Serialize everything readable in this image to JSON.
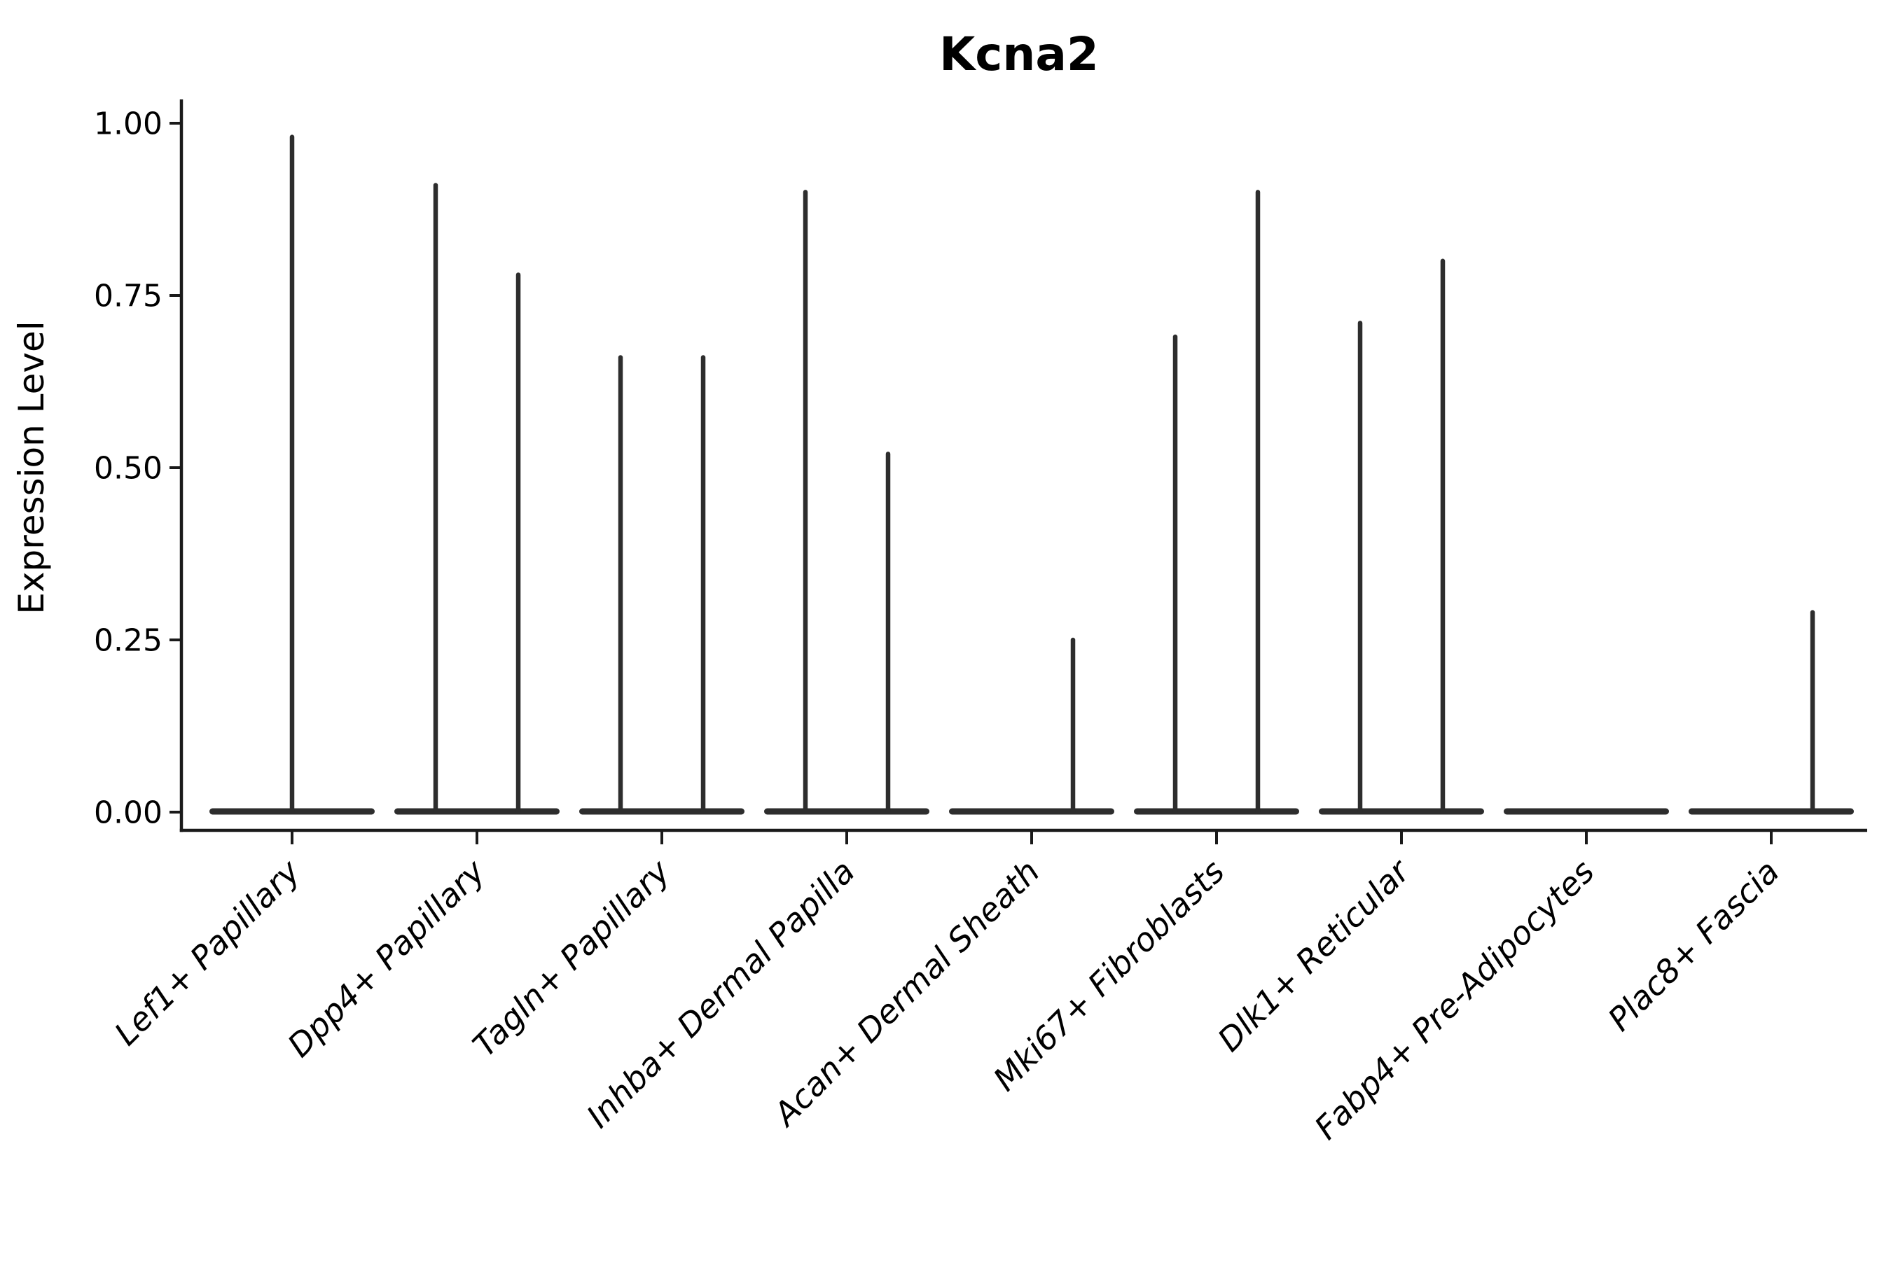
{
  "title": "Kcna2",
  "colors": {
    "violin": "#2d2d2d",
    "axis": "#1a1a1a",
    "text": "#000000",
    "background": "#ffffff"
  },
  "chart_data": {
    "type": "violin",
    "title": "Kcna2",
    "xlabel": "",
    "ylabel": "Expression Level",
    "ylim": [
      0,
      1.05
    ],
    "yticks": [
      0.0,
      0.25,
      0.5,
      0.75,
      1.0
    ],
    "ytick_labels": [
      "0.00",
      "0.25",
      "0.50",
      "0.75",
      "1.00"
    ],
    "grid": false,
    "legend": "none",
    "x_tick_rotation": 45,
    "categories": [
      "Lef1+ Papillary",
      "Dpp4+ Papillary",
      "Tagln+ Papillary",
      "Inhba+ Dermal Papilla",
      "Acan+ Dermal Sheath",
      "Mki67+ Fibroblasts",
      "Dlk1+ Reticular",
      "Fabp4+ Pre-Adipocytes",
      "Plac8+ Fascia"
    ],
    "groups": [
      {
        "label": "Lef1+ Papillary",
        "violins": [
          {
            "max": 0.98
          }
        ]
      },
      {
        "label": "Dpp4+ Papillary",
        "violins": [
          {
            "max": 0.91
          },
          {
            "max": 0.78
          }
        ]
      },
      {
        "label": "Tagln+ Papillary",
        "violins": [
          {
            "max": 0.66
          },
          {
            "max": 0.66
          }
        ]
      },
      {
        "label": "Inhba+ Dermal Papilla",
        "violins": [
          {
            "max": 0.9
          },
          {
            "max": 0.52
          }
        ]
      },
      {
        "label": "Acan+ Dermal Sheath",
        "violins": [
          {
            "max": 0.0
          },
          {
            "max": 0.25
          }
        ]
      },
      {
        "label": "Mki67+ Fibroblasts",
        "violins": [
          {
            "max": 0.69
          },
          {
            "max": 0.9
          }
        ]
      },
      {
        "label": "Dlk1+ Reticular",
        "violins": [
          {
            "max": 0.71
          },
          {
            "max": 0.8
          }
        ]
      },
      {
        "label": "Fabp4+ Pre-Adipocytes",
        "violins": [
          {
            "max": 0.0
          }
        ]
      },
      {
        "label": "Plac8+ Fascia",
        "violins": [
          {
            "max": 0.0
          },
          {
            "max": 0.29
          }
        ]
      }
    ],
    "baseline_value": 0.0
  }
}
